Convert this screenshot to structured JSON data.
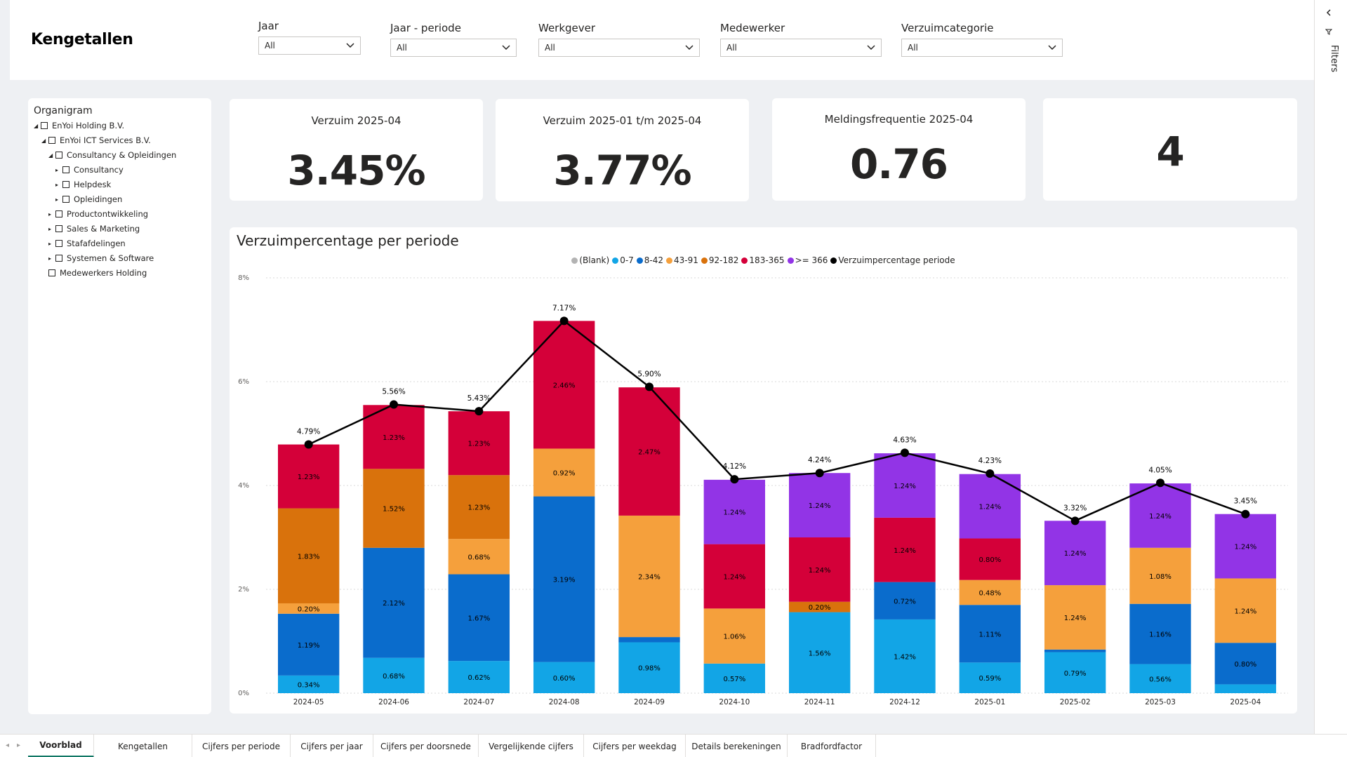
{
  "header": {
    "title": "Kengetallen",
    "slicers": [
      {
        "label": "Jaar",
        "value": "All"
      },
      {
        "label": "Jaar - periode",
        "value": "All"
      },
      {
        "label": "Werkgever",
        "value": "All"
      },
      {
        "label": "Medewerker",
        "value": "All"
      },
      {
        "label": "Verzuimcategorie",
        "value": "All"
      }
    ]
  },
  "filters_pane": {
    "label": "Filters"
  },
  "organigram": {
    "title": "Organigram",
    "items": [
      {
        "label": "EnYoi Holding B.V.",
        "toggle": "◢"
      },
      {
        "label": "EnYoi ICT Services B.V.",
        "toggle": "◢"
      },
      {
        "label": "Consultancy & Opleidingen",
        "toggle": "◢"
      },
      {
        "label": "Consultancy",
        "toggle": "▸"
      },
      {
        "label": "Helpdesk",
        "toggle": "▸"
      },
      {
        "label": "Opleidingen",
        "toggle": "▸"
      },
      {
        "label": "Productontwikkeling",
        "toggle": "▸"
      },
      {
        "label": "Sales & Marketing",
        "toggle": "▸"
      },
      {
        "label": "Stafafdelingen",
        "toggle": "▸"
      },
      {
        "label": "Systemen & Software",
        "toggle": "▸"
      },
      {
        "label": "Medewerkers Holding",
        "toggle": ""
      }
    ]
  },
  "cards": [
    {
      "title": "Verzuim 2025-04",
      "value": "3.45%"
    },
    {
      "title": "Verzuim 2025-01 t/m 2025-04",
      "value": "3.77%"
    },
    {
      "title": "Meldingsfrequentie 2025-04",
      "value": "0.76"
    },
    {
      "title": "",
      "value": "4"
    }
  ],
  "chart_data": {
    "type": "bar",
    "title": "Verzuimpercentage per periode",
    "stacked": true,
    "ylim": [
      0,
      8
    ],
    "yticks": [
      "0%",
      "2%",
      "4%",
      "6%",
      "8%"
    ],
    "grid": true,
    "legend_position": "top-center",
    "categories": [
      "2024-05",
      "2024-06",
      "2024-07",
      "2024-08",
      "2024-09",
      "2024-10",
      "2024-11",
      "2024-12",
      "2025-01",
      "2025-02",
      "2025-03",
      "2025-04"
    ],
    "series": [
      {
        "name": "(Blank)",
        "color": "#b3b3b3",
        "values": [
          0,
          0,
          0,
          0,
          0,
          0,
          0,
          0,
          0,
          0,
          0,
          0
        ]
      },
      {
        "name": "0-7",
        "color": "#12a5e6",
        "values": [
          0.34,
          0.68,
          0.62,
          0.6,
          0.98,
          0.57,
          1.56,
          1.42,
          0.59,
          0.79,
          0.56,
          0.17
        ]
      },
      {
        "name": "8-42",
        "color": "#0a6ccc",
        "values": [
          1.19,
          2.12,
          1.67,
          3.19,
          0.1,
          0,
          0,
          0.72,
          1.11,
          0.05,
          1.16,
          0.8
        ]
      },
      {
        "name": "43-91",
        "color": "#f5a03c",
        "values": [
          0.2,
          0,
          0.68,
          0.92,
          2.34,
          1.06,
          0,
          0,
          0.48,
          1.24,
          1.08,
          1.24
        ]
      },
      {
        "name": "92-182",
        "color": "#d9720c",
        "values": [
          1.83,
          1.52,
          1.23,
          0,
          0,
          0,
          0.2,
          0,
          0,
          0,
          0,
          0
        ]
      },
      {
        "name": "183-365",
        "color": "#d40039",
        "values": [
          1.23,
          1.23,
          1.23,
          2.46,
          2.47,
          1.24,
          1.24,
          1.24,
          0.8,
          0,
          0,
          0
        ]
      },
      {
        "name": ">= 366",
        "color": "#9234e6",
        "values": [
          0,
          0,
          0,
          0,
          0,
          1.24,
          1.24,
          1.24,
          1.24,
          1.24,
          1.24,
          1.24
        ]
      }
    ],
    "segment_labels": [
      [
        "",
        "0.34%",
        "1.19%",
        "0.20%",
        "1.83%",
        "1.23%",
        ""
      ],
      [
        "",
        "0.68%",
        "2.12%",
        "",
        "1.52%",
        "1.23%",
        ""
      ],
      [
        "",
        "0.62%",
        "1.67%",
        "0.68%",
        "1.23%",
        "1.23%",
        ""
      ],
      [
        "",
        "0.60%",
        "3.19%",
        "0.92%",
        "",
        "2.46%",
        ""
      ],
      [
        "",
        "0.98%",
        "",
        "2.34%",
        "",
        "2.47%",
        ""
      ],
      [
        "",
        "0.57%",
        "",
        "1.06%",
        "",
        "1.24%",
        "1.24%"
      ],
      [
        "",
        "1.56%",
        "",
        "",
        "0.20%",
        "1.24%",
        "1.24%"
      ],
      [
        "",
        "1.42%",
        "0.72%",
        "",
        "",
        "1.24%",
        "1.24%"
      ],
      [
        "",
        "0.59%",
        "1.11%",
        "0.48%",
        "",
        "0.80%",
        "1.24%"
      ],
      [
        "",
        "0.79%",
        "",
        "1.24%",
        "",
        "",
        "1.24%"
      ],
      [
        "",
        "0.56%",
        "1.16%",
        "1.08%",
        "",
        "",
        "1.24%"
      ],
      [
        "",
        "",
        "0.80%",
        "1.24%",
        "",
        "",
        "1.24%"
      ]
    ],
    "line": {
      "name": "Verzuimpercentage periode",
      "color": "#000000",
      "values": [
        4.79,
        5.56,
        5.43,
        7.17,
        5.9,
        4.12,
        4.24,
        4.63,
        4.23,
        3.32,
        4.05,
        3.45
      ],
      "labels": [
        "4.79%",
        "5.56%",
        "5.43%",
        "7.17%",
        "5.90%",
        "4.12%",
        "4.24%",
        "4.63%",
        "4.23%",
        "3.32%",
        "4.05%",
        "3.45%"
      ]
    }
  },
  "tabs": [
    {
      "label": "Voorblad",
      "active": true
    },
    {
      "label": "Kengetallen"
    },
    {
      "label": "Cijfers per periode"
    },
    {
      "label": "Cijfers per jaar"
    },
    {
      "label": "Cijfers per doorsnede"
    },
    {
      "label": "Vergelijkende cijfers"
    },
    {
      "label": "Cijfers per weekdag"
    },
    {
      "label": "Details berekeningen"
    },
    {
      "label": "Bradfordfactor"
    }
  ]
}
